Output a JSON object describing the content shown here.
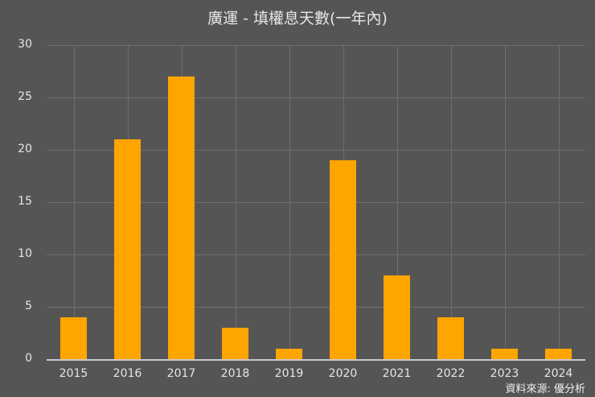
{
  "title": "廣運 - 填權息天數(一年內)",
  "source": "資料來源: 優分析",
  "colors": {
    "background": "#555555",
    "bar": "#ffa500",
    "grid": "#6e6e6e",
    "text": "#e6e6e6"
  },
  "chart_data": {
    "type": "bar",
    "title": "廣運 - 填權息天數(一年內)",
    "categories": [
      "2015",
      "2016",
      "2017",
      "2018",
      "2019",
      "2020",
      "2021",
      "2022",
      "2023",
      "2024"
    ],
    "values": [
      4,
      21,
      27,
      3,
      1,
      19,
      8,
      4,
      1,
      1
    ],
    "xlabel": "",
    "ylabel": "",
    "ylim": [
      0,
      30
    ],
    "yticks": [
      "0",
      "5",
      "10",
      "15",
      "20",
      "25",
      "30"
    ],
    "grid": true,
    "legend": null,
    "annotations": [
      "資料來源: 優分析"
    ]
  }
}
